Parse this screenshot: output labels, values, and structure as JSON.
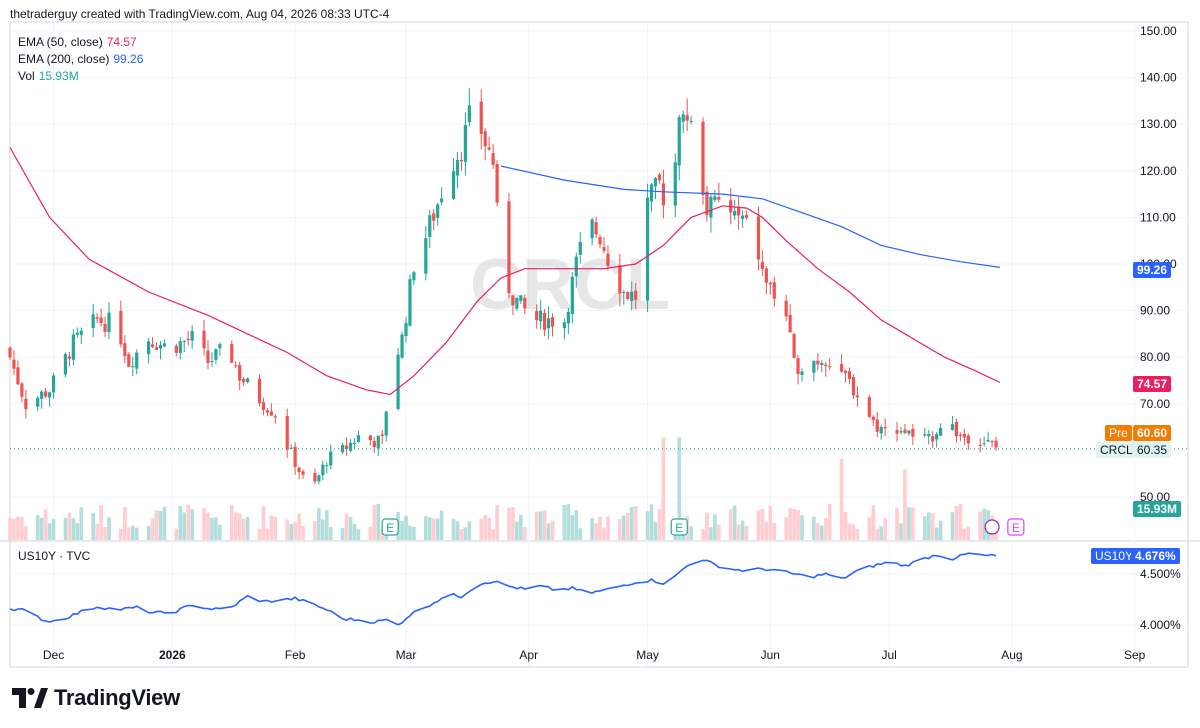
{
  "attribution": "thetraderguy created with TradingView.com, Aug 04, 2026 08:33 UTC-4",
  "brand": "TradingView",
  "colors": {
    "up": "#26a69a",
    "down": "#ef5350",
    "ema50": "#e91e63",
    "ema200": "#2962ff",
    "us10y": "#2962ff",
    "pre": "#f57c00",
    "grid": "#f0f3fa",
    "vol_up": "#b2dfdb",
    "vol_down": "#ffcdd2"
  },
  "legend": {
    "ema50": {
      "label": "EMA (50, close)",
      "value": "74.57"
    },
    "ema200": {
      "label": "EMA (200, close)",
      "value": "99.26"
    },
    "vol": {
      "label": "Vol",
      "value": "15.93M"
    }
  },
  "symbol": "CRCL",
  "sub_legend": "US10Y · TVC",
  "price_tags": {
    "ema200": "99.26",
    "ema50": "74.57",
    "pre_label": "Pre",
    "pre": "60.60",
    "last_label": "CRCL",
    "last": "60.35",
    "vol": "15.93M",
    "us10y_label": "US10Y",
    "us10y": "4.676%"
  },
  "event_markers": [
    "E",
    "E",
    "E"
  ],
  "chart_data": [
    {
      "type": "candlestick",
      "symbol": "CRCL",
      "y_ticks": [
        50,
        60,
        70,
        80,
        90,
        100,
        110,
        120,
        130,
        140,
        150
      ],
      "y_tick_labels": [
        "50.00",
        "60.00",
        "70.00",
        "80.00",
        "90.00",
        "100.00",
        "110.00",
        "120.00",
        "130.00",
        "140.00",
        "150.00"
      ],
      "ylim": [
        45,
        150
      ],
      "x_labels": [
        "Dec",
        "2026",
        "Feb",
        "Mar",
        "Apr",
        "May",
        "Jun",
        "Jul",
        "Aug",
        "Sep"
      ],
      "x_label_days": [
        11,
        41,
        72,
        100,
        131,
        161,
        192,
        222,
        253,
        284
      ],
      "last_day": 250,
      "anchors": [
        [
          0,
          80
        ],
        [
          4,
          70
        ],
        [
          10,
          73
        ],
        [
          16,
          83
        ],
        [
          22,
          88
        ],
        [
          27,
          87
        ],
        [
          30,
          79
        ],
        [
          35,
          84
        ],
        [
          40,
          82
        ],
        [
          46,
          84
        ],
        [
          50,
          79
        ],
        [
          55,
          82
        ],
        [
          58,
          76
        ],
        [
          63,
          71
        ],
        [
          67,
          68
        ],
        [
          70,
          61
        ],
        [
          74,
          54
        ],
        [
          76,
          51
        ],
        [
          80,
          58
        ],
        [
          84,
          60
        ],
        [
          88,
          63
        ],
        [
          92,
          62
        ],
        [
          94,
          62
        ],
        [
          96,
          76
        ],
        [
          99,
          84
        ],
        [
          102,
          100
        ],
        [
          105,
          106
        ],
        [
          108,
          113
        ],
        [
          111,
          121
        ],
        [
          114,
          125
        ],
        [
          117,
          134
        ],
        [
          120,
          126
        ],
        [
          122,
          122
        ],
        [
          124,
          99
        ],
        [
          127,
          93
        ],
        [
          130,
          90
        ],
        [
          133,
          88
        ],
        [
          136,
          88
        ],
        [
          140,
          88
        ],
        [
          143,
          100
        ],
        [
          146,
          109
        ],
        [
          149,
          106
        ],
        [
          152,
          99
        ],
        [
          155,
          94
        ],
        [
          158,
          93
        ],
        [
          161,
          113
        ],
        [
          164,
          117
        ],
        [
          167,
          110
        ],
        [
          169,
          130
        ],
        [
          171,
          132
        ],
        [
          173,
          126
        ],
        [
          176,
          112
        ],
        [
          179,
          113
        ],
        [
          182,
          111
        ],
        [
          185,
          109
        ],
        [
          188,
          106
        ],
        [
          190,
          98
        ],
        [
          193,
          93
        ],
        [
          196,
          89
        ],
        [
          198,
          78
        ],
        [
          202,
          79
        ],
        [
          206,
          80
        ],
        [
          210,
          77
        ],
        [
          214,
          72
        ],
        [
          218,
          66
        ],
        [
          221,
          64
        ],
        [
          224,
          65
        ],
        [
          228,
          63
        ],
        [
          232,
          62
        ],
        [
          236,
          67
        ],
        [
          240,
          63
        ],
        [
          244,
          63
        ],
        [
          248,
          61
        ],
        [
          250,
          60
        ]
      ],
      "volume_axis_max_m": 60,
      "volume_spikes": [
        {
          "day": 96,
          "volume_m": 60
        },
        {
          "day": 124,
          "volume_m": 53
        },
        {
          "day": 165,
          "volume_m": 48
        },
        {
          "day": 166,
          "volume_m": 32
        },
        {
          "day": 169,
          "volume_m": 48
        },
        {
          "day": 226,
          "volume_m": 33
        },
        {
          "day": 210,
          "volume_m": 38
        },
        {
          "day": 188,
          "volume_m": 25
        },
        {
          "day": 103,
          "volume_m": 28
        }
      ],
      "ema50_points": [
        [
          0,
          125
        ],
        [
          10,
          110
        ],
        [
          20,
          101
        ],
        [
          35,
          94
        ],
        [
          50,
          89
        ],
        [
          60,
          85
        ],
        [
          70,
          81
        ],
        [
          80,
          76
        ],
        [
          90,
          73
        ],
        [
          96,
          72
        ],
        [
          102,
          76
        ],
        [
          110,
          83
        ],
        [
          118,
          92
        ],
        [
          124,
          97
        ],
        [
          130,
          99
        ],
        [
          140,
          99
        ],
        [
          150,
          99
        ],
        [
          158,
          100
        ],
        [
          165,
          104
        ],
        [
          172,
          110
        ],
        [
          180,
          112.5
        ],
        [
          186,
          112
        ],
        [
          190,
          110
        ],
        [
          196,
          105
        ],
        [
          204,
          99
        ],
        [
          212,
          94
        ],
        [
          220,
          88
        ],
        [
          228,
          84
        ],
        [
          236,
          80
        ],
        [
          244,
          77
        ],
        [
          250,
          74.57
        ]
      ],
      "ema200_points": [
        [
          124,
          121
        ],
        [
          140,
          118
        ],
        [
          155,
          116
        ],
        [
          165,
          115.5
        ],
        [
          180,
          115
        ],
        [
          190,
          114
        ],
        [
          200,
          111
        ],
        [
          210,
          108
        ],
        [
          220,
          104
        ],
        [
          230,
          102
        ],
        [
          240,
          100.5
        ],
        [
          250,
          99.26
        ]
      ]
    },
    {
      "type": "line",
      "symbol": "US10Y",
      "y_tick_labels": [
        "4.000%",
        "4.500%"
      ],
      "y_ticks": [
        4.0,
        4.5
      ],
      "ylim": [
        3.95,
        4.75
      ],
      "anchors": [
        [
          0,
          4.16
        ],
        [
          3,
          4.15
        ],
        [
          9,
          4.04
        ],
        [
          12,
          4.04
        ],
        [
          18,
          4.13
        ],
        [
          22,
          4.18
        ],
        [
          27,
          4.15
        ],
        [
          32,
          4.17
        ],
        [
          36,
          4.12
        ],
        [
          41,
          4.12
        ],
        [
          46,
          4.2
        ],
        [
          50,
          4.16
        ],
        [
          55,
          4.15
        ],
        [
          60,
          4.28
        ],
        [
          64,
          4.23
        ],
        [
          68,
          4.24
        ],
        [
          72,
          4.26
        ],
        [
          76,
          4.21
        ],
        [
          80,
          4.15
        ],
        [
          84,
          4.06
        ],
        [
          88,
          4.05
        ],
        [
          92,
          4.03
        ],
        [
          95,
          4.05
        ],
        [
          98,
          4.0
        ],
        [
          101,
          4.1
        ],
        [
          105,
          4.18
        ],
        [
          108,
          4.24
        ],
        [
          111,
          4.3
        ],
        [
          114,
          4.28
        ],
        [
          118,
          4.4
        ],
        [
          122,
          4.43
        ],
        [
          126,
          4.38
        ],
        [
          130,
          4.35
        ],
        [
          134,
          4.38
        ],
        [
          138,
          4.34
        ],
        [
          142,
          4.36
        ],
        [
          146,
          4.31
        ],
        [
          150,
          4.34
        ],
        [
          154,
          4.38
        ],
        [
          158,
          4.42
        ],
        [
          162,
          4.44
        ],
        [
          166,
          4.4
        ],
        [
          170,
          4.55
        ],
        [
          174,
          4.66
        ],
        [
          178,
          4.59
        ],
        [
          182,
          4.55
        ],
        [
          186,
          4.53
        ],
        [
          190,
          4.55
        ],
        [
          194,
          4.53
        ],
        [
          198,
          4.5
        ],
        [
          202,
          4.47
        ],
        [
          206,
          4.5
        ],
        [
          210,
          4.45
        ],
        [
          214,
          4.53
        ],
        [
          218,
          4.58
        ],
        [
          222,
          4.62
        ],
        [
          226,
          4.58
        ],
        [
          230,
          4.64
        ],
        [
          234,
          4.69
        ],
        [
          238,
          4.65
        ],
        [
          242,
          4.7
        ],
        [
          246,
          4.68
        ],
        [
          250,
          4.676
        ]
      ]
    }
  ]
}
